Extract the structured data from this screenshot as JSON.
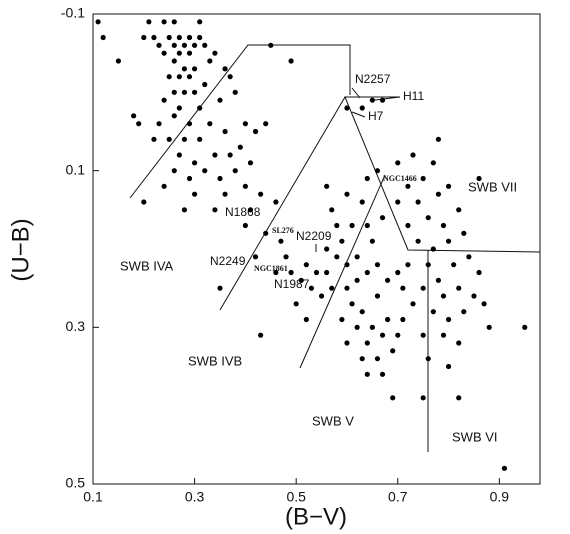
{
  "chart_data": {
    "type": "scatter",
    "x_label": "(B−V)",
    "y_label": "(U−B)",
    "xlim": [
      0.1,
      0.98
    ],
    "ylim": [
      -0.1,
      0.5
    ],
    "y_inverted": true,
    "xticks": [
      0.1,
      0.3,
      0.5,
      0.7,
      0.9
    ],
    "yticks": [
      -0.1,
      0.1,
      0.3,
      0.5
    ],
    "color": "#000000",
    "annotations": [
      "N2257",
      "H11",
      "H7",
      "NGC1466",
      "SWB VII",
      "N1868",
      "SL276",
      "N2209",
      "SWB IVA",
      "N2249",
      "NGC1861",
      "N1987",
      "SWB IVB",
      "SWB V",
      "SWB VI"
    ],
    "x": [
      0.11,
      0.12,
      0.15,
      0.21,
      0.24,
      0.26,
      0.31,
      0.22,
      0.25,
      0.27,
      0.29,
      0.31,
      0.23,
      0.26,
      0.28,
      0.3,
      0.32,
      0.2,
      0.24,
      0.27,
      0.29,
      0.33,
      0.26,
      0.28,
      0.3,
      0.25,
      0.27,
      0.29,
      0.32,
      0.36,
      0.34,
      0.26,
      0.28,
      0.3,
      0.24,
      0.27,
      0.31,
      0.35,
      0.38,
      0.37,
      0.18,
      0.19,
      0.23,
      0.26,
      0.29,
      0.33,
      0.22,
      0.25,
      0.28,
      0.31,
      0.36,
      0.4,
      0.27,
      0.3,
      0.34,
      0.37,
      0.39,
      0.26,
      0.29,
      0.32,
      0.35,
      0.38,
      0.41,
      0.24,
      0.3,
      0.36,
      0.4,
      0.43,
      0.2,
      0.28,
      0.34,
      0.41,
      0.46,
      0.42,
      0.44,
      0.45,
      0.49,
      0.4,
      0.44,
      0.42,
      0.35,
      0.43,
      0.47,
      0.48,
      0.46,
      0.49,
      0.52,
      0.54,
      0.51,
      0.53,
      0.56,
      0.55,
      0.5,
      0.52,
      0.57,
      0.58,
      0.6,
      0.56,
      0.59,
      0.62,
      0.57,
      0.6,
      0.56,
      0.63,
      0.61,
      0.58,
      0.64,
      0.66,
      0.64,
      0.67,
      0.65,
      0.62,
      0.6,
      0.64,
      0.66,
      0.61,
      0.59,
      0.63,
      0.66,
      0.68,
      0.7,
      0.72,
      0.62,
      0.65,
      0.68,
      0.6,
      0.64,
      0.67,
      0.7,
      0.63,
      0.66,
      0.69,
      0.64,
      0.67,
      0.69,
      0.71,
      0.73,
      0.71,
      0.7,
      0.73,
      0.77,
      0.75,
      0.72,
      0.7,
      0.74,
      0.78,
      0.8,
      0.76,
      0.72,
      0.79,
      0.82,
      0.74,
      0.77,
      0.8,
      0.83,
      0.76,
      0.78,
      0.81,
      0.84,
      0.86,
      0.75,
      0.79,
      0.82,
      0.85,
      0.77,
      0.8,
      0.83,
      0.87,
      0.75,
      0.79,
      0.82,
      0.76,
      0.8,
      0.75,
      0.82,
      0.88,
      0.95,
      0.91,
      0.86,
      0.78,
      0.6,
      0.63,
      0.65,
      0.67
    ],
    "y": [
      -0.09,
      -0.07,
      -0.04,
      -0.09,
      -0.09,
      -0.09,
      -0.09,
      -0.07,
      -0.07,
      -0.07,
      -0.07,
      -0.07,
      -0.06,
      -0.06,
      -0.06,
      -0.06,
      -0.06,
      -0.07,
      -0.05,
      -0.05,
      -0.05,
      -0.04,
      -0.04,
      -0.03,
      -0.03,
      -0.02,
      -0.02,
      -0.02,
      -0.01,
      -0.03,
      -0.05,
      0.0,
      0.0,
      0.0,
      0.01,
      0.02,
      0.02,
      0.01,
      0.0,
      -0.02,
      0.03,
      0.04,
      0.04,
      0.03,
      0.04,
      0.04,
      0.06,
      0.06,
      0.06,
      0.06,
      0.05,
      0.04,
      0.08,
      0.09,
      0.08,
      0.08,
      0.07,
      0.1,
      0.11,
      0.1,
      0.11,
      0.1,
      0.09,
      0.12,
      0.13,
      0.13,
      0.12,
      0.13,
      0.14,
      0.15,
      0.15,
      0.15,
      0.14,
      0.05,
      0.04,
      -0.06,
      -0.04,
      0.17,
      0.18,
      0.21,
      0.25,
      0.31,
      0.19,
      0.21,
      0.23,
      0.23,
      0.22,
      0.23,
      0.24,
      0.25,
      0.23,
      0.26,
      0.27,
      0.29,
      0.25,
      0.21,
      0.22,
      0.2,
      0.19,
      0.21,
      0.15,
      0.13,
      0.12,
      0.14,
      0.17,
      0.17,
      0.11,
      0.1,
      0.17,
      0.16,
      0.19,
      0.24,
      0.25,
      0.23,
      0.22,
      0.27,
      0.29,
      0.28,
      0.26,
      0.24,
      0.23,
      0.22,
      0.3,
      0.3,
      0.29,
      0.32,
      0.32,
      0.31,
      0.31,
      0.34,
      0.34,
      0.33,
      0.36,
      0.36,
      0.39,
      0.25,
      0.27,
      0.29,
      0.09,
      0.08,
      0.09,
      0.11,
      0.12,
      0.14,
      0.14,
      0.13,
      0.12,
      0.16,
      0.17,
      0.17,
      0.15,
      0.19,
      0.2,
      0.19,
      0.18,
      0.22,
      0.24,
      0.22,
      0.21,
      0.23,
      0.25,
      0.26,
      0.25,
      0.26,
      0.28,
      0.29,
      0.28,
      0.27,
      0.31,
      0.31,
      0.32,
      0.34,
      0.35,
      0.39,
      0.39,
      0.3,
      0.3,
      0.48,
      0.11,
      0.06,
      0.02,
      0.02,
      0.01,
      0.01
    ]
  }
}
